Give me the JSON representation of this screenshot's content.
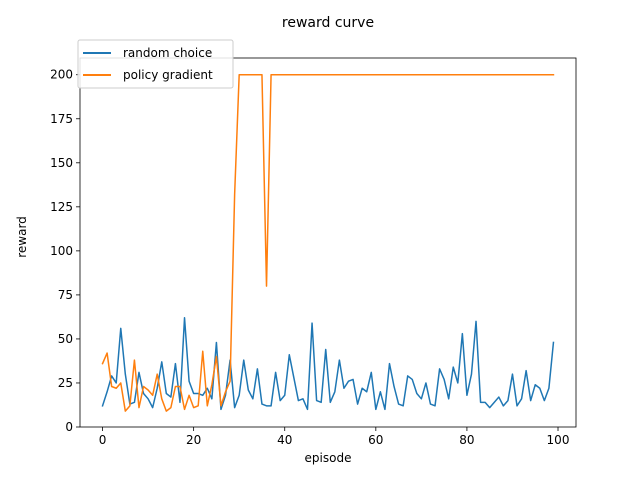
{
  "chart_data": {
    "type": "line",
    "title": "reward curve",
    "xlabel": "episode",
    "ylabel": "reward",
    "xlim": [
      -4.95,
      103.95
    ],
    "ylim": [
      0,
      209.5
    ],
    "xticks": [
      "0",
      "20",
      "40",
      "60",
      "80",
      "100"
    ],
    "yticks": [
      "0",
      "25",
      "50",
      "75",
      "100",
      "125",
      "150",
      "175",
      "200"
    ],
    "legend_position": "upper-left",
    "grid": false,
    "x": [
      0,
      1,
      2,
      3,
      4,
      5,
      6,
      7,
      8,
      9,
      10,
      11,
      12,
      13,
      14,
      15,
      16,
      17,
      18,
      19,
      20,
      21,
      22,
      23,
      24,
      25,
      26,
      27,
      28,
      29,
      30,
      31,
      32,
      33,
      34,
      35,
      36,
      37,
      38,
      39,
      40,
      41,
      42,
      43,
      44,
      45,
      46,
      47,
      48,
      49,
      50,
      51,
      52,
      53,
      54,
      55,
      56,
      57,
      58,
      59,
      60,
      61,
      62,
      63,
      64,
      65,
      66,
      67,
      68,
      69,
      70,
      71,
      72,
      73,
      74,
      75,
      76,
      77,
      78,
      79,
      80,
      81,
      82,
      83,
      84,
      85,
      86,
      87,
      88,
      89,
      90,
      91,
      92,
      93,
      94,
      95,
      96,
      97,
      98,
      99
    ],
    "series": [
      {
        "name": "random choice",
        "color": "#1f77b4",
        "values": [
          12,
          20,
          29,
          25,
          56,
          30,
          13,
          14,
          31,
          19,
          16,
          11,
          22,
          37,
          19,
          17,
          36,
          14,
          62,
          26,
          19,
          19,
          18,
          22,
          16,
          48,
          10,
          18,
          38,
          11,
          18,
          38,
          21,
          16,
          33,
          13,
          12,
          12,
          31,
          15,
          18,
          41,
          28,
          15,
          16,
          10,
          59,
          15,
          14,
          44,
          14,
          20,
          38,
          22,
          26,
          27,
          13,
          22,
          20,
          31,
          10,
          20,
          10,
          36,
          23,
          13,
          12,
          29,
          27,
          19,
          16,
          25,
          13,
          12,
          33,
          27,
          16,
          34,
          25,
          53,
          18,
          30,
          60,
          14,
          14,
          11,
          14,
          17,
          12,
          15,
          30,
          12,
          16,
          32,
          15,
          24,
          22,
          15,
          22,
          48
        ]
      },
      {
        "name": "policy gradient",
        "color": "#ff7f0e",
        "values": [
          36,
          42,
          23,
          22,
          25,
          9,
          12,
          38,
          11,
          23,
          21,
          18,
          30,
          16,
          9,
          11,
          23,
          23,
          10,
          18,
          11,
          12,
          43,
          12,
          24,
          40,
          12,
          20,
          26,
          132,
          200,
          200,
          200,
          200,
          200,
          200,
          80,
          200,
          200,
          200,
          200,
          200,
          200,
          200,
          200,
          200,
          200,
          200,
          200,
          200,
          200,
          200,
          200,
          200,
          200,
          200,
          200,
          200,
          200,
          200,
          200,
          200,
          200,
          200,
          200,
          200,
          200,
          200,
          200,
          200,
          200,
          200,
          200,
          200,
          200,
          200,
          200,
          200,
          200,
          200,
          200,
          200,
          200,
          200,
          200,
          200,
          200,
          200,
          200,
          200,
          200,
          200,
          200,
          200,
          200,
          200,
          200,
          200,
          200,
          200
        ]
      }
    ]
  }
}
